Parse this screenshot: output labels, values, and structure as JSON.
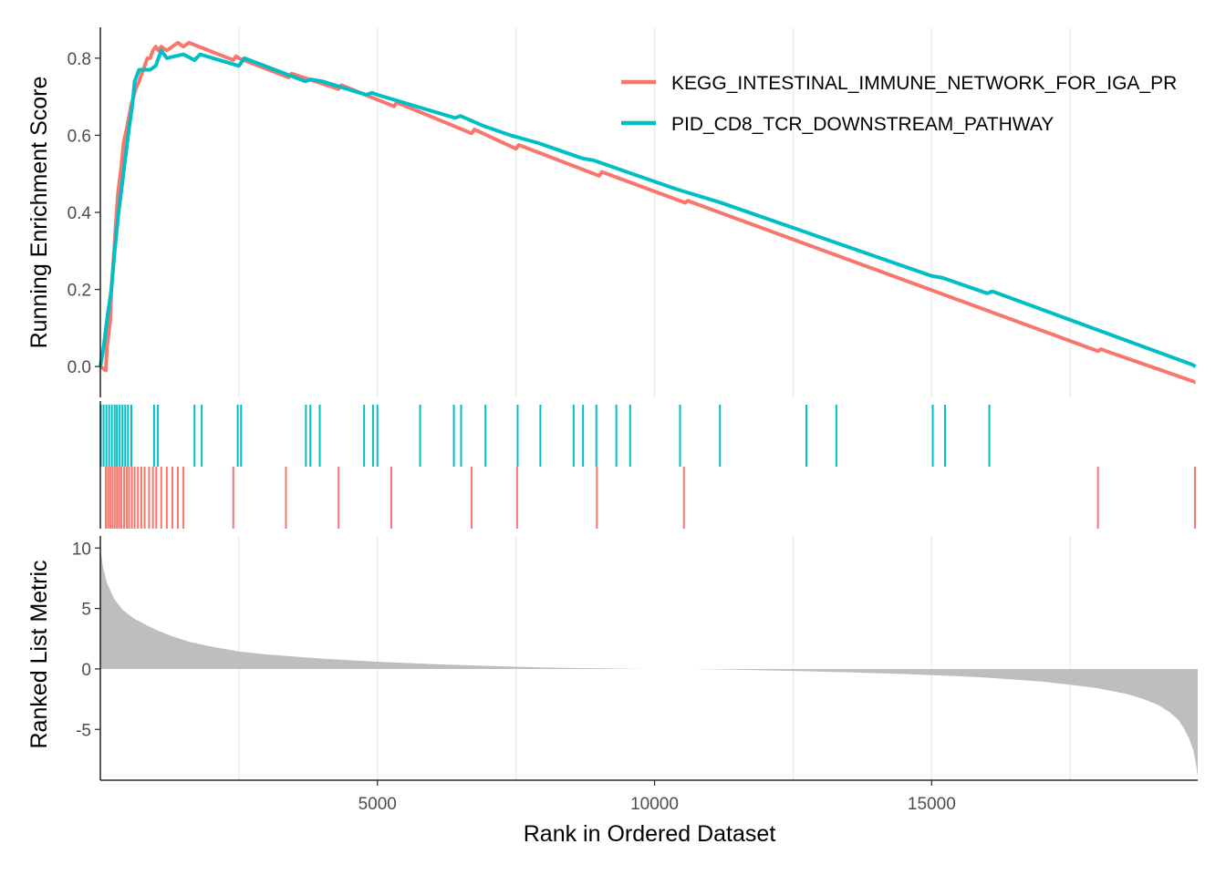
{
  "chart_data": {
    "type": "line",
    "ylabel_top": "Running Enrichment Score",
    "ylabel_bottom": "Ranked List Metric",
    "xlabel": "Rank in Ordered Dataset",
    "xlim": [
      1,
      19800
    ],
    "x_ticks": [
      5000,
      10000,
      15000
    ],
    "x_tick_labels": [
      "5000",
      "10000",
      "15000"
    ],
    "es_ylim": [
      -0.08,
      0.88
    ],
    "es_y_ticks": [
      0.0,
      0.2,
      0.4,
      0.6,
      0.8
    ],
    "es_y_tick_labels": [
      "0.0",
      "0.2",
      "0.4",
      "0.6",
      "0.8"
    ],
    "metric_ylim": [
      -9.2,
      11.0
    ],
    "metric_y_ticks": [
      -5,
      0,
      5,
      10
    ],
    "metric_y_tick_labels": [
      "-5",
      "0",
      "5",
      "10"
    ],
    "grid": true,
    "legend_position": "top-right",
    "series": [
      {
        "name": "KEGG_INTESTINAL_IMMUNE_NETWORK_FOR_IGA_PR",
        "color": "#F8766D",
        "x": [
          1,
          100,
          120,
          180,
          200,
          250,
          270,
          320,
          380,
          420,
          450,
          480,
          520,
          560,
          600,
          640,
          700,
          750,
          800,
          850,
          900,
          950,
          1000,
          1050,
          1100,
          1200,
          1300,
          1400,
          1500,
          1550,
          1600,
          2400,
          2450,
          2500,
          3400,
          3450,
          4300,
          4350,
          5300,
          5350,
          6700,
          6750,
          7500,
          7550,
          9000,
          9050,
          10550,
          10600,
          18000,
          18050,
          19750,
          19760
        ],
        "y": [
          0.0,
          -0.01,
          0.05,
          0.12,
          0.2,
          0.3,
          0.35,
          0.45,
          0.52,
          0.58,
          0.6,
          0.62,
          0.65,
          0.68,
          0.7,
          0.72,
          0.74,
          0.76,
          0.78,
          0.8,
          0.8,
          0.82,
          0.83,
          0.82,
          0.83,
          0.82,
          0.83,
          0.84,
          0.83,
          0.835,
          0.84,
          0.795,
          0.805,
          0.8,
          0.75,
          0.76,
          0.72,
          0.73,
          0.675,
          0.685,
          0.605,
          0.615,
          0.565,
          0.575,
          0.495,
          0.505,
          0.425,
          0.43,
          0.04,
          0.045,
          -0.04,
          -0.04
        ]
      },
      {
        "name": "PID_CD8_TCR_DOWNSTREAM_PATHWAY",
        "color": "#00BFC4",
        "x": [
          1,
          60,
          120,
          200,
          260,
          330,
          400,
          460,
          520,
          580,
          620,
          700,
          800,
          900,
          1000,
          1050,
          1100,
          1200,
          1500,
          1700,
          1800,
          2500,
          2550,
          2600,
          3700,
          3800,
          4000,
          4800,
          4900,
          5000,
          6400,
          6500,
          6900,
          7400,
          7900,
          8500,
          8700,
          8900,
          9100,
          9400,
          9600,
          10400,
          11200,
          12700,
          13300,
          15000,
          15200,
          16000,
          16100,
          19700,
          19760
        ],
        "y": [
          0.0,
          0.05,
          0.12,
          0.2,
          0.3,
          0.4,
          0.48,
          0.55,
          0.62,
          0.68,
          0.74,
          0.77,
          0.77,
          0.77,
          0.78,
          0.8,
          0.82,
          0.8,
          0.81,
          0.795,
          0.81,
          0.78,
          0.79,
          0.8,
          0.74,
          0.745,
          0.74,
          0.705,
          0.71,
          0.705,
          0.645,
          0.65,
          0.625,
          0.6,
          0.58,
          0.55,
          0.54,
          0.535,
          0.525,
          0.51,
          0.5,
          0.46,
          0.425,
          0.35,
          0.32,
          0.235,
          0.23,
          0.19,
          0.195,
          0.005,
          0.0
        ]
      }
    ],
    "hit_ranks": {
      "KEGG_INTESTINAL_IMMUNE_NETWORK_FOR_IGA_PR": [
        100,
        140,
        180,
        220,
        260,
        300,
        340,
        380,
        430,
        480,
        520,
        570,
        620,
        680,
        740,
        800,
        880,
        950,
        1010,
        1100,
        1200,
        1300,
        1400,
        1500,
        2400,
        3350,
        4300,
        5250,
        6700,
        7520,
        8960,
        10530,
        18000,
        19750
      ],
      "PID_CD8_TCR_DOWNSTREAM_PATHWAY": [
        10,
        60,
        110,
        160,
        210,
        260,
        300,
        350,
        400,
        450,
        500,
        560,
        970,
        1040,
        1700,
        1830,
        2480,
        2540,
        3710,
        3790,
        3960,
        4760,
        4920,
        5000,
        5770,
        6380,
        6510,
        6950,
        7530,
        7940,
        8540,
        8710,
        8950,
        9310,
        9560,
        10460,
        11180,
        12740,
        13280,
        15020,
        15240,
        16040
      ]
    },
    "metric_curve": {
      "x": [
        1,
        50,
        120,
        250,
        400,
        600,
        800,
        1000,
        1300,
        1600,
        2000,
        2500,
        3000,
        4000,
        5000,
        6000,
        7000,
        8000,
        9000,
        9820,
        10660,
        11500,
        12500,
        13500,
        14500,
        15500,
        16000,
        16500,
        17000,
        17500,
        18000,
        18500,
        18800,
        19100,
        19300,
        19450,
        19550,
        19650,
        19720,
        19760,
        19800
      ],
      "y": [
        10.0,
        8.4,
        7.1,
        5.8,
        4.9,
        4.2,
        3.7,
        3.25,
        2.7,
        2.25,
        1.85,
        1.45,
        1.2,
        0.85,
        0.6,
        0.4,
        0.25,
        0.12,
        0.05,
        0.0,
        0.0,
        -0.06,
        -0.16,
        -0.28,
        -0.42,
        -0.6,
        -0.72,
        -0.88,
        -1.05,
        -1.3,
        -1.6,
        -2.05,
        -2.45,
        -3.0,
        -3.6,
        -4.2,
        -4.9,
        -5.8,
        -6.7,
        -7.6,
        -8.9
      ]
    }
  }
}
